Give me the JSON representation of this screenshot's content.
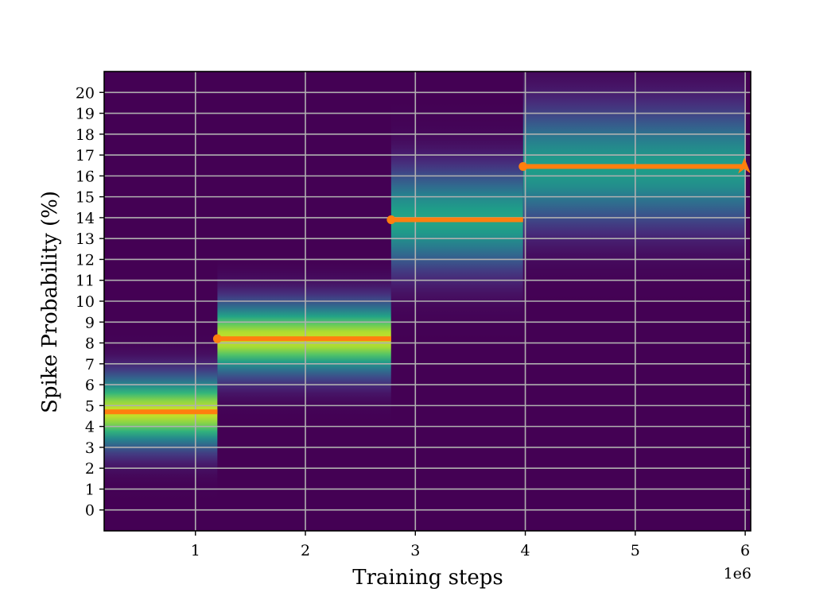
{
  "chart_data": {
    "type": "heatmap",
    "xlabel": "Training steps",
    "ylabel": "Spike Probability (%)",
    "x_offset_label": "1e6",
    "xlim": [
      170000,
      6050000
    ],
    "ylim": [
      -1,
      21
    ],
    "x_ticks": [
      1,
      2,
      3,
      4,
      5,
      6
    ],
    "x_tick_scale": 1000000,
    "y_ticks": [
      0,
      1,
      2,
      3,
      4,
      5,
      6,
      7,
      8,
      9,
      10,
      11,
      12,
      13,
      14,
      15,
      16,
      17,
      18,
      19,
      20
    ],
    "grid": true,
    "colormap": "viridis",
    "background_color": "#440154",
    "line_color": "#ff7f0e",
    "segments": [
      {
        "x_start": 170000,
        "x_end": 1200000,
        "center": 4.7,
        "spread": 1.4,
        "intensity": 0.92,
        "mean": 4.7,
        "marker": "none"
      },
      {
        "x_start": 1200000,
        "x_end": 2780000,
        "center": 8.2,
        "spread": 1.4,
        "intensity": 0.92,
        "mean": 8.2,
        "marker": "circle"
      },
      {
        "x_start": 2780000,
        "x_end": 3980000,
        "center": 13.9,
        "spread": 2.0,
        "intensity": 0.58,
        "mean": 13.9,
        "marker": "circle"
      },
      {
        "x_start": 3980000,
        "x_end": 6000000,
        "center": 16.4,
        "spread": 2.3,
        "intensity": 0.55,
        "mean": 16.45,
        "marker": "circle",
        "end_marker": "arrow"
      }
    ]
  }
}
